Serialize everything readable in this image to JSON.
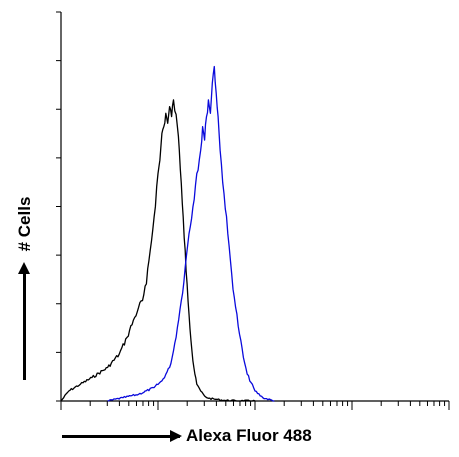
{
  "chart_data": {
    "type": "line",
    "title": "",
    "xlabel": "Alexa Fluor 488",
    "ylabel": "# Cells",
    "x_scale": "log",
    "xlim": [
      0,
      1
    ],
    "ylim": [
      0,
      1
    ],
    "grid": false,
    "legend": "none",
    "tick_labels_shown": false,
    "series": [
      {
        "color": "#000000",
        "x": [
          0.0,
          0.02,
          0.05,
          0.08,
          0.12,
          0.15,
          0.17,
          0.19,
          0.2,
          0.21,
          0.22,
          0.23,
          0.24,
          0.25,
          0.255,
          0.26,
          0.265,
          0.27,
          0.275,
          0.28,
          0.285,
          0.29,
          0.3,
          0.305,
          0.31,
          0.315,
          0.32,
          0.325,
          0.33,
          0.335,
          0.34,
          0.345,
          0.35,
          0.36,
          0.37,
          0.38,
          0.4,
          0.42,
          0.45,
          0.5
        ],
        "values": [
          0.0,
          0.03,
          0.05,
          0.07,
          0.1,
          0.14,
          0.19,
          0.25,
          0.28,
          0.3,
          0.35,
          0.45,
          0.55,
          0.68,
          0.72,
          0.8,
          0.82,
          0.86,
          0.83,
          0.88,
          0.85,
          0.9,
          0.82,
          0.75,
          0.65,
          0.55,
          0.45,
          0.35,
          0.26,
          0.18,
          0.12,
          0.08,
          0.05,
          0.03,
          0.015,
          0.008,
          0.005,
          0.002,
          0.001,
          0.0
        ]
      },
      {
        "color": "#0a0adc",
        "x": [
          0.12,
          0.16,
          0.2,
          0.24,
          0.26,
          0.28,
          0.29,
          0.3,
          0.31,
          0.32,
          0.33,
          0.34,
          0.35,
          0.36,
          0.365,
          0.37,
          0.375,
          0.38,
          0.385,
          0.39,
          0.395,
          0.4,
          0.405,
          0.41,
          0.42,
          0.43,
          0.44,
          0.45,
          0.46,
          0.47,
          0.48,
          0.5,
          0.52,
          0.55
        ],
        "values": [
          0.0,
          0.01,
          0.02,
          0.04,
          0.06,
          0.1,
          0.15,
          0.22,
          0.3,
          0.4,
          0.5,
          0.58,
          0.68,
          0.75,
          0.82,
          0.78,
          0.85,
          0.9,
          0.86,
          0.95,
          1.0,
          0.92,
          0.85,
          0.75,
          0.62,
          0.5,
          0.38,
          0.28,
          0.2,
          0.13,
          0.08,
          0.03,
          0.01,
          0.0
        ]
      }
    ]
  }
}
